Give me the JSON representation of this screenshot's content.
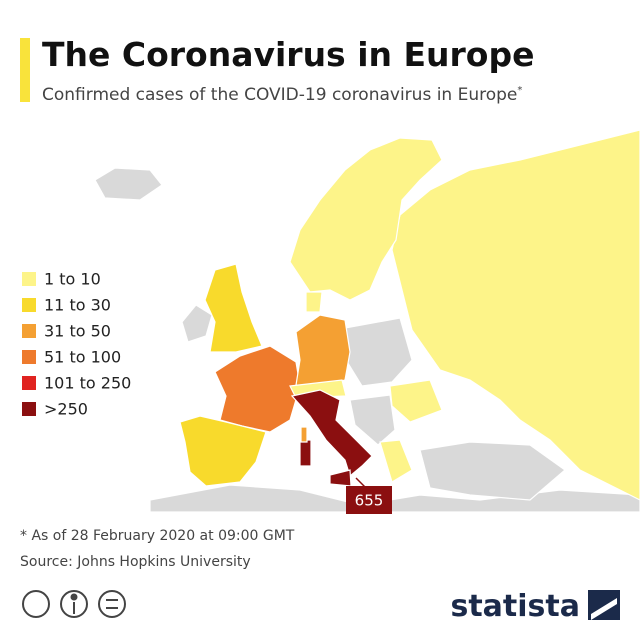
{
  "header": {
    "title": "The Coronavirus in Europe",
    "subtitle": "Confirmed cases of the COVID-19 coronavirus in Europe",
    "subtitle_mark": "*"
  },
  "legend": [
    {
      "label": "1 to 10",
      "color": "#fdf489"
    },
    {
      "label": "11 to 30",
      "color": "#f8da2c"
    },
    {
      "label": "31 to 50",
      "color": "#f4a033"
    },
    {
      "label": "51 to 100",
      "color": "#ee7a2c"
    },
    {
      "label": "101 to 250",
      "color": "#e02320"
    },
    {
      "label": ">250",
      "color": "#8b0f10"
    }
  ],
  "annotation": {
    "label": "655"
  },
  "footer": {
    "note": "* As of 28 February 2020 at 09:00 GMT",
    "source": "Source: Johns Hopkins University",
    "brand": "statista"
  }
}
